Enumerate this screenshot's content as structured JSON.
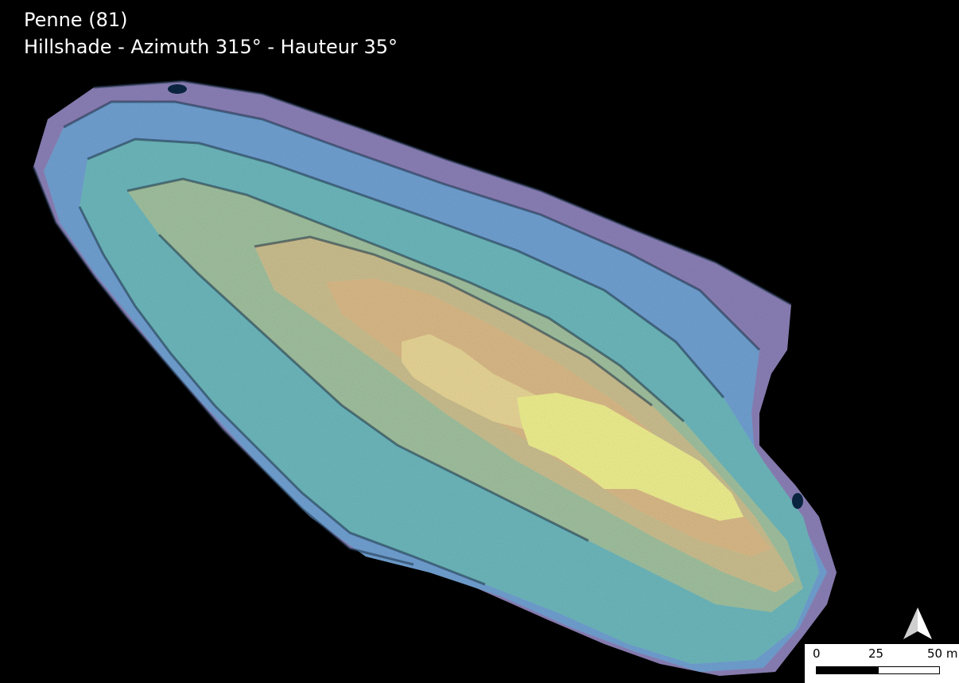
{
  "map": {
    "title": "Penne (81)",
    "subtitle": "Hillshade - Azimuth 315° - Hauteur 35°"
  },
  "north_arrow": {
    "icon": "north-arrow-icon"
  },
  "scalebar": {
    "labels": [
      "0",
      "25",
      "50 m"
    ],
    "segments": [
      "filled",
      "empty"
    ]
  },
  "colors": {
    "background": "#000000",
    "low_elevation": "#8a7fb5",
    "mid_low": "#6f9fd0",
    "mid": "#6cb6bb",
    "mid_high": "#b9b58d",
    "high": "#d8c48a",
    "peak": "#e9e98a"
  }
}
